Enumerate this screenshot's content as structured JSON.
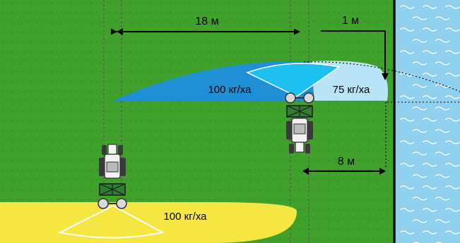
{
  "colors": {
    "field": "#3fa02b",
    "field_dark": "#378f25",
    "water": "#8fd0ef",
    "water_wave": "#ffffff",
    "spread_main": "#1f8fd6",
    "spread_inner": "#1ec0f0",
    "spread_border": "#b9e3f7",
    "spread_headland": "#f5e642",
    "tractor_body": "#f2f2f2",
    "tractor_dark": "#3a3a3a",
    "spreader": "#2e7d32"
  },
  "labels": {
    "working_width": "18 м",
    "border_distance": "1 м",
    "headland_offset": "8 м",
    "rate_main": "100 кг/ха",
    "rate_border": "75 кг/ха",
    "rate_headland": "100 кг/ха"
  }
}
